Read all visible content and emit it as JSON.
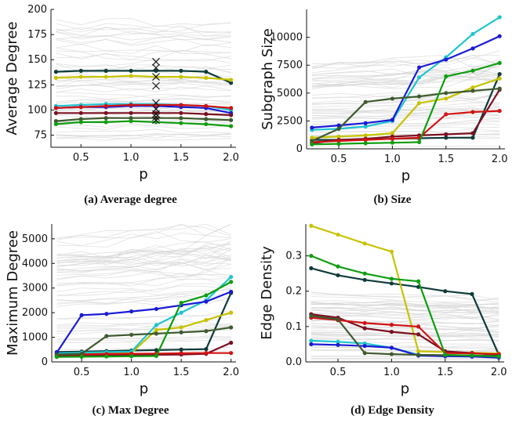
{
  "colors": {
    "background_lines": "#d4d4d4",
    "series": [
      "#0f3b3a",
      "#c7c300",
      "#1fc4d0",
      "#1a1ad6",
      "#7a1020",
      "#d01414",
      "#3f5a2f",
      "#0f9e0f"
    ]
  },
  "chart_data": [
    {
      "type": "line",
      "title": "",
      "xlabel": "p",
      "ylabel": "Average Degree",
      "caption": "(a) Average degree",
      "x": [
        0.25,
        0.5,
        0.75,
        1.0,
        1.25,
        1.5,
        1.75,
        2.0
      ],
      "xlim": [
        0.2,
        2.05
      ],
      "ylim": [
        63,
        200
      ],
      "xticks": [
        0.5,
        1.0,
        1.5,
        2.0
      ],
      "xtick_labels": [
        "0.5",
        "1.0",
        "1.5",
        "2.0"
      ],
      "yticks": [
        75,
        100,
        125,
        150,
        175,
        200
      ],
      "ytick_labels": [
        "75",
        "100",
        "125",
        "150",
        "175",
        "200"
      ],
      "grid": false,
      "background_band": [
        72,
        195
      ],
      "markers": {
        "x": 1.25,
        "y": [
          148,
          142,
          133,
          124,
          107,
          101,
          96,
          93,
          90
        ]
      },
      "series": [
        {
          "values": [
            138,
            139,
            139,
            139,
            139,
            139,
            138,
            127
          ]
        },
        {
          "values": [
            132,
            133,
            133,
            134,
            133,
            133,
            132,
            130
          ]
        },
        {
          "values": [
            104,
            105,
            106,
            106,
            106,
            105,
            104,
            100
          ]
        },
        {
          "values": [
            102,
            103,
            103,
            104,
            104,
            103,
            102,
            97
          ]
        },
        {
          "values": [
            97,
            97,
            97,
            97,
            97,
            97,
            96,
            95
          ]
        },
        {
          "values": [
            102,
            103,
            104,
            105,
            105,
            105,
            104,
            102
          ]
        },
        {
          "values": [
            89,
            91,
            92,
            92,
            92,
            92,
            91,
            90
          ]
        },
        {
          "values": [
            86,
            88,
            88,
            89,
            88,
            87,
            86,
            84
          ]
        }
      ]
    },
    {
      "type": "line",
      "title": "",
      "xlabel": "p",
      "ylabel": "Subgraph Size",
      "caption": "(b) Size",
      "x": [
        0.25,
        0.5,
        0.75,
        1.0,
        1.25,
        1.5,
        1.75,
        2.0
      ],
      "xlim": [
        0.2,
        2.05
      ],
      "ylim": [
        0,
        12500
      ],
      "xticks": [
        0.5,
        1.0,
        1.5,
        2.0
      ],
      "xtick_labels": [
        "0.5",
        "1.0",
        "1.5",
        "2.0"
      ],
      "yticks": [
        0,
        2500,
        5000,
        7500,
        10000
      ],
      "ytick_labels": [
        "0",
        "2500",
        "5000",
        "7500",
        "10000"
      ],
      "grid": false,
      "background_band": [
        200,
        7600
      ],
      "series": [
        {
          "values": [
            800,
            800,
            850,
            900,
            950,
            1000,
            1000,
            6700
          ]
        },
        {
          "values": [
            1000,
            1100,
            1200,
            1400,
            4100,
            4500,
            5500,
            6300
          ]
        },
        {
          "values": [
            1700,
            1800,
            2000,
            2500,
            6400,
            8200,
            10300,
            11800
          ]
        },
        {
          "values": [
            1900,
            2100,
            2300,
            2600,
            7300,
            8000,
            9000,
            10100
          ]
        },
        {
          "values": [
            500,
            800,
            900,
            1100,
            1200,
            1300,
            1400,
            5300
          ]
        },
        {
          "values": [
            600,
            700,
            800,
            900,
            1000,
            3100,
            3300,
            3400
          ]
        },
        {
          "values": [
            700,
            1800,
            4200,
            4500,
            4700,
            5000,
            5200,
            5400
          ]
        },
        {
          "values": [
            400,
            450,
            500,
            550,
            600,
            6500,
            7000,
            7700
          ]
        }
      ]
    },
    {
      "type": "line",
      "title": "",
      "xlabel": "p",
      "ylabel": "Maximum Degree",
      "caption": "(c) Max Degree",
      "x": [
        0.25,
        0.5,
        0.75,
        1.0,
        1.25,
        1.5,
        1.75,
        2.0
      ],
      "xlim": [
        0.2,
        2.05
      ],
      "ylim": [
        0,
        5600
      ],
      "xticks": [
        0.5,
        1.0,
        1.5,
        2.0
      ],
      "xtick_labels": [
        "0.5",
        "1.0",
        "1.5",
        "2.0"
      ],
      "yticks": [
        0,
        1000,
        2000,
        3000,
        4000,
        5000
      ],
      "ytick_labels": [
        "0",
        "1000",
        "2000",
        "3000",
        "4000",
        "5000"
      ],
      "grid": false,
      "background_band": [
        200,
        5200
      ],
      "series": [
        {
          "values": [
            400,
            420,
            440,
            460,
            480,
            500,
            520,
            2800
          ]
        },
        {
          "values": [
            300,
            320,
            340,
            360,
            1300,
            1400,
            1700,
            2000
          ]
        },
        {
          "values": [
            350,
            380,
            400,
            420,
            1500,
            2000,
            2500,
            3450
          ]
        },
        {
          "values": [
            380,
            1900,
            1950,
            2050,
            2150,
            2300,
            2450,
            2850
          ]
        },
        {
          "values": [
            250,
            260,
            270,
            280,
            290,
            300,
            330,
            780
          ]
        },
        {
          "values": [
            300,
            310,
            320,
            330,
            340,
            350,
            360,
            360
          ]
        },
        {
          "values": [
            300,
            330,
            1050,
            1100,
            1150,
            1200,
            1250,
            1400
          ]
        },
        {
          "values": [
            200,
            210,
            220,
            230,
            240,
            2400,
            2700,
            3250
          ]
        }
      ]
    },
    {
      "type": "line",
      "title": "",
      "xlabel": "p",
      "ylabel": "Edge Density",
      "caption": "(d) Edge Density",
      "x": [
        0.25,
        0.5,
        0.75,
        1.0,
        1.25,
        1.5,
        1.75,
        2.0
      ],
      "xlim": [
        0.2,
        2.05
      ],
      "ylim": [
        0,
        0.39
      ],
      "xticks": [
        0.5,
        1.0,
        1.5,
        2.0
      ],
      "xtick_labels": [
        "0.5",
        "1.0",
        "1.5",
        "2.0"
      ],
      "yticks": [
        0.0,
        0.1,
        0.2,
        0.3
      ],
      "ytick_labels": [
        "0.0",
        "0.1",
        "0.2",
        "0.3"
      ],
      "grid": false,
      "background_band": [
        0.005,
        0.2
      ],
      "series": [
        {
          "values": [
            0.265,
            0.245,
            0.232,
            0.222,
            0.212,
            0.2,
            0.192,
            0.02
          ]
        },
        {
          "values": [
            0.385,
            0.36,
            0.335,
            0.312,
            0.03,
            0.028,
            0.026,
            0.024
          ]
        },
        {
          "values": [
            0.06,
            0.057,
            0.052,
            0.04,
            0.02,
            0.018,
            0.017,
            0.015
          ]
        },
        {
          "values": [
            0.05,
            0.048,
            0.045,
            0.04,
            0.018,
            0.016,
            0.015,
            0.012
          ]
        },
        {
          "values": [
            0.135,
            0.125,
            0.095,
            0.085,
            0.078,
            0.03,
            0.025,
            0.02
          ]
        },
        {
          "values": [
            0.125,
            0.118,
            0.11,
            0.105,
            0.1,
            0.025,
            0.024,
            0.022
          ]
        },
        {
          "values": [
            0.13,
            0.12,
            0.025,
            0.022,
            0.02,
            0.019,
            0.018,
            0.017
          ]
        },
        {
          "values": [
            0.3,
            0.27,
            0.25,
            0.235,
            0.228,
            0.02,
            0.018,
            0.015
          ]
        }
      ]
    }
  ]
}
